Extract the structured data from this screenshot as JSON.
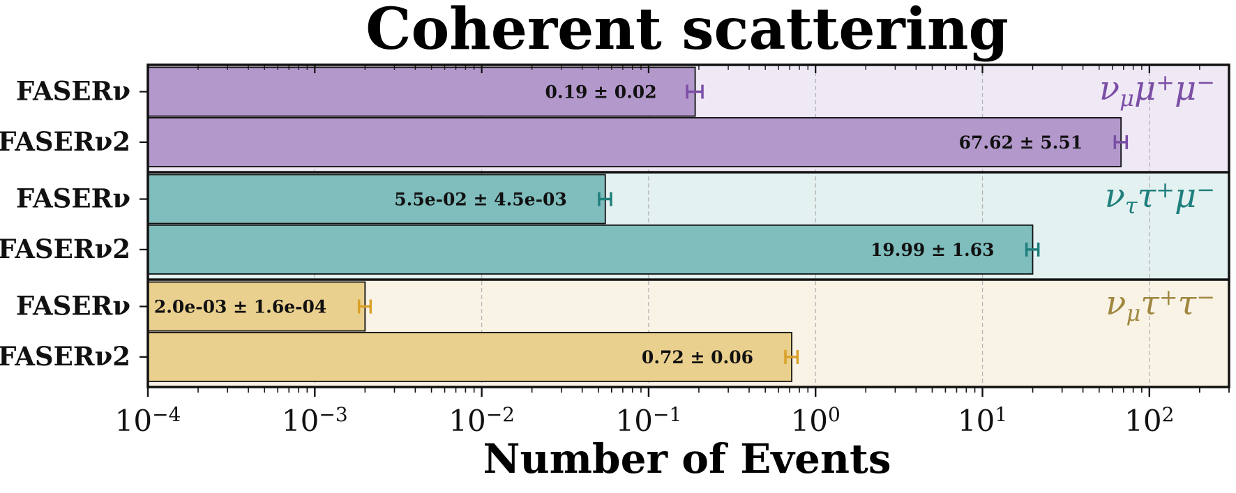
{
  "chart_data": {
    "type": "bar",
    "orientation": "horizontal",
    "title": "Coherent scattering",
    "xlabel": "Number of Events",
    "x_scale": "log",
    "xlim": [
      0.0001,
      300
    ],
    "x_ticks": [
      {
        "value": 0.0001,
        "base": "10",
        "exp": "−4"
      },
      {
        "value": 0.001,
        "base": "10",
        "exp": "−3"
      },
      {
        "value": 0.01,
        "base": "10",
        "exp": "−2"
      },
      {
        "value": 0.1,
        "base": "10",
        "exp": "−1"
      },
      {
        "value": 1,
        "base": "10",
        "exp": "0"
      },
      {
        "value": 10,
        "base": "10",
        "exp": "1"
      },
      {
        "value": 100,
        "base": "10",
        "exp": "2"
      }
    ],
    "grid": "vertical dashed at decades",
    "groups": [
      {
        "channel": "ν_μ μ⁺ μ⁻",
        "channel_parts": [
          {
            "t": "ν",
            "style": "base"
          },
          {
            "t": "μ",
            "style": "sub"
          },
          {
            "t": "μ",
            "style": "base"
          },
          {
            "t": "+",
            "style": "sup"
          },
          {
            "t": "μ",
            "style": "base"
          },
          {
            "t": "−",
            "style": "sup"
          }
        ],
        "color": "#7b4fa6",
        "bar_color": "#b398cc",
        "bg_color": "#efe9f5",
        "bars": [
          {
            "label": "FASERν",
            "value": 0.19,
            "error": 0.02,
            "annotation": "0.19 ± 0.02"
          },
          {
            "label": "FASERν2",
            "value": 67.62,
            "error": 5.51,
            "annotation": "67.62 ± 5.51"
          }
        ]
      },
      {
        "channel": "ν_τ τ⁺ μ⁻",
        "channel_parts": [
          {
            "t": "ν",
            "style": "base"
          },
          {
            "t": "τ",
            "style": "sub"
          },
          {
            "t": "τ",
            "style": "base"
          },
          {
            "t": "+",
            "style": "sup"
          },
          {
            "t": "μ",
            "style": "base"
          },
          {
            "t": "−",
            "style": "sup"
          }
        ],
        "color": "#1f7f7c",
        "bar_color": "#80bdbd",
        "bg_color": "#e3f1f1",
        "bars": [
          {
            "label": "FASERν",
            "value": 0.055,
            "error": 0.0045,
            "annotation": "5.5e-02 ± 4.5e-03"
          },
          {
            "label": "FASERν2",
            "value": 19.99,
            "error": 1.63,
            "annotation": "19.99 ± 1.63"
          }
        ]
      },
      {
        "channel": "ν_μ τ⁺ τ⁻",
        "channel_parts": [
          {
            "t": "ν",
            "style": "base"
          },
          {
            "t": "μ",
            "style": "sub"
          },
          {
            "t": "τ",
            "style": "base"
          },
          {
            "t": "+",
            "style": "sup"
          },
          {
            "t": "τ",
            "style": "base"
          },
          {
            "t": "−",
            "style": "sup"
          }
        ],
        "color": "#a0873f",
        "err_color": "#d9a12a",
        "bar_color": "#ead08e",
        "bg_color": "#f9f3e6",
        "bars": [
          {
            "label": "FASERν",
            "value": 0.002,
            "error": 0.00016,
            "annotation": "2.0e-03 ± 1.6e-04"
          },
          {
            "label": "FASERν2",
            "value": 0.72,
            "error": 0.06,
            "annotation": "0.72 ± 0.06"
          }
        ]
      }
    ]
  }
}
